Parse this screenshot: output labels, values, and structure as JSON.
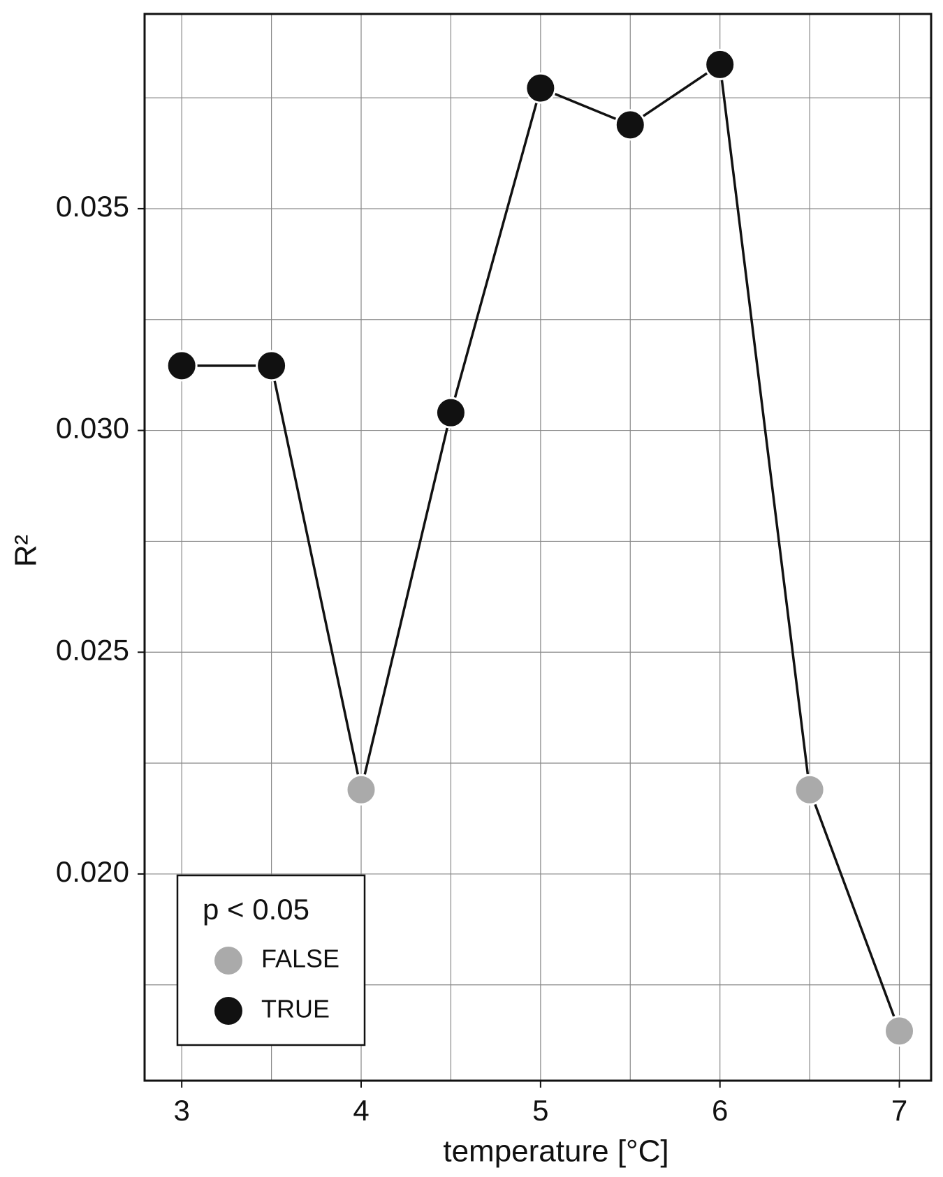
{
  "chart_data": {
    "type": "line",
    "x_label": "temperature [°C]",
    "y_label": "R²",
    "x": [
      3,
      3.5,
      4,
      4.5,
      5,
      5.5,
      6,
      6.5,
      7
    ],
    "series": [
      {
        "color": "#111111",
        "values": [
          0.03146,
          0.03146,
          0.0219,
          0.0304,
          0.03772,
          0.03689,
          0.03825,
          0.0219,
          0.01646
        ],
        "significant": [
          true,
          true,
          false,
          true,
          true,
          true,
          true,
          false,
          false
        ]
      }
    ],
    "xlim": [
      2.793,
      7.177
    ],
    "ylim": [
      0.01534,
      0.03939
    ],
    "xticks": [
      3,
      4,
      5,
      6,
      7
    ],
    "yticks": [
      {
        "value": 0.02,
        "label": "0.020"
      },
      {
        "value": 0.025,
        "label": "0.025"
      },
      {
        "value": 0.03,
        "label": "0.030"
      },
      {
        "value": 0.035,
        "label": "0.035"
      }
    ],
    "xminor": [
      3.5,
      4.5,
      5.5,
      6.5
    ],
    "yminor": [
      0.0175,
      0.0225,
      0.0275,
      0.0325,
      0.0375
    ],
    "grid": true,
    "legend": {
      "title": "p < 0.05",
      "position": "lower left",
      "entries": [
        {
          "label": "FALSE",
          "color": "#aaaaaa"
        },
        {
          "label": "TRUE",
          "color": "#111111"
        }
      ]
    }
  }
}
